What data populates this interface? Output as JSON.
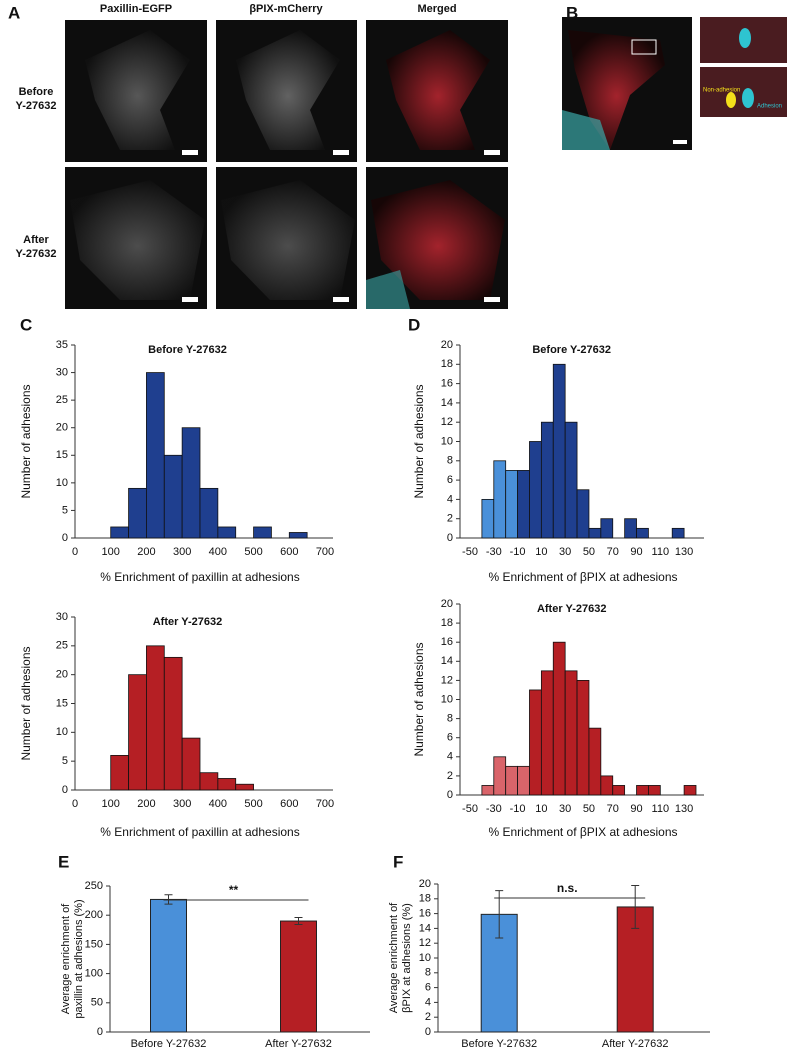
{
  "figure": {
    "panel_letters": [
      "A",
      "B",
      "C",
      "D",
      "E",
      "F"
    ],
    "column_headers": [
      "Paxillin-EGFP",
      "βPIX-mCherry",
      "Merged"
    ],
    "row_labels": [
      [
        "Before",
        "Y-27632"
      ],
      [
        "After",
        "Y-27632"
      ]
    ],
    "inset_labels": [
      "Non-adhesion",
      "Adhesion"
    ]
  },
  "chart_data": [
    {
      "type": "histogram",
      "title": "Before Y-27632",
      "xlabel": "% Enrichment of paxillin at adhesions",
      "ylabel": "Number of adhesions",
      "bins": [
        0,
        50,
        100,
        150,
        200,
        250,
        300,
        350,
        400,
        450,
        500,
        550,
        600,
        650,
        700
      ],
      "values": [
        0,
        0,
        2,
        9,
        30,
        15,
        20,
        9,
        2,
        0,
        2,
        0,
        1,
        0
      ],
      "color": "#1f3f8f",
      "xlim": [
        0,
        700
      ],
      "xticks": [
        0,
        100,
        200,
        300,
        400,
        500,
        600,
        700
      ],
      "ylim": [
        0,
        35
      ],
      "yticks": [
        0,
        5,
        10,
        15,
        20,
        25,
        30,
        35
      ]
    },
    {
      "type": "histogram",
      "title": "After Y-27632",
      "xlabel": "% Enrichment of paxillin at adhesions",
      "ylabel": "Number of adhesions",
      "bins": [
        0,
        50,
        100,
        150,
        200,
        250,
        300,
        350,
        400,
        450,
        500,
        550,
        600,
        650,
        700
      ],
      "values": [
        0,
        0,
        6,
        20,
        25,
        23,
        9,
        3,
        2,
        1,
        0,
        0,
        0,
        0
      ],
      "color": "#b51f24",
      "xlim": [
        0,
        700
      ],
      "xticks": [
        0,
        100,
        200,
        300,
        400,
        500,
        600,
        700
      ],
      "ylim": [
        0,
        30
      ],
      "yticks": [
        0,
        5,
        10,
        15,
        20,
        25,
        30
      ]
    },
    {
      "type": "histogram",
      "title": "Before Y-27632",
      "xlabel": "% Enrichment of βPIX at adhesions",
      "ylabel": "Number of adhesions",
      "bins": [
        -40,
        -30,
        -20,
        -10,
        0,
        10,
        20,
        30,
        40,
        50,
        60,
        70,
        80,
        90,
        100,
        110,
        120,
        130,
        140
      ],
      "values": [
        4,
        8,
        7,
        7,
        10,
        12,
        18,
        12,
        5,
        1,
        2,
        0,
        2,
        1,
        0,
        0,
        1,
        0
      ],
      "colors": [
        "#4a90d9",
        "#4a90d9",
        "#4a90d9",
        "#1f3f8f",
        "#1f3f8f",
        "#1f3f8f",
        "#1f3f8f",
        "#1f3f8f",
        "#1f3f8f",
        "#1f3f8f",
        "#1f3f8f",
        "#1f3f8f",
        "#1f3f8f",
        "#1f3f8f",
        "#1f3f8f",
        "#1f3f8f",
        "#1f3f8f",
        "#1f3f8f"
      ],
      "xlim": [
        -50,
        140
      ],
      "xticks": [
        -50,
        -30,
        -10,
        10,
        30,
        50,
        70,
        90,
        110,
        130
      ],
      "ylim": [
        0,
        20
      ],
      "yticks": [
        0,
        2,
        4,
        6,
        8,
        10,
        12,
        14,
        16,
        18,
        20
      ]
    },
    {
      "type": "histogram",
      "title": "After Y-27632",
      "xlabel": "% Enrichment of βPIX at adhesions",
      "ylabel": "Number of adhesions",
      "bins": [
        -40,
        -30,
        -20,
        -10,
        0,
        10,
        20,
        30,
        40,
        50,
        60,
        70,
        80,
        90,
        100,
        110,
        120,
        130,
        140
      ],
      "values": [
        1,
        4,
        3,
        3,
        11,
        13,
        16,
        13,
        12,
        7,
        2,
        1,
        0,
        1,
        1,
        0,
        0,
        1
      ],
      "colors": [
        "#d9646a",
        "#d9646a",
        "#d9646a",
        "#d9646a",
        "#b51f24",
        "#b51f24",
        "#b51f24",
        "#b51f24",
        "#b51f24",
        "#b51f24",
        "#b51f24",
        "#b51f24",
        "#b51f24",
        "#b51f24",
        "#b51f24",
        "#b51f24",
        "#b51f24",
        "#b51f24"
      ],
      "xlim": [
        -50,
        140
      ],
      "xticks": [
        -50,
        -30,
        -10,
        10,
        30,
        50,
        70,
        90,
        110,
        130
      ],
      "ylim": [
        0,
        20
      ],
      "yticks": [
        0,
        2,
        4,
        6,
        8,
        10,
        12,
        14,
        16,
        18,
        20
      ]
    },
    {
      "type": "bar",
      "ylabel": [
        "Average enrichment of",
        "paxillin at adhesions (%)"
      ],
      "categories": [
        "Before Y-27632",
        "After Y-27632"
      ],
      "values": [
        227,
        190
      ],
      "errors": [
        8,
        6
      ],
      "colors": [
        "#4a90d9",
        "#b51f24"
      ],
      "annotation": "**",
      "ylim": [
        0,
        250
      ],
      "yticks": [
        0,
        50,
        100,
        150,
        200,
        250
      ]
    },
    {
      "type": "bar",
      "ylabel": [
        "Average enrichment of",
        "βPIX at adhesions (%)"
      ],
      "categories": [
        "Before Y-27632",
        "After Y-27632"
      ],
      "values": [
        15.9,
        16.9
      ],
      "errors": [
        3.2,
        2.9
      ],
      "colors": [
        "#4a90d9",
        "#b51f24"
      ],
      "annotation": "n.s.",
      "ylim": [
        0,
        20
      ],
      "yticks": [
        0,
        2,
        4,
        6,
        8,
        10,
        12,
        14,
        16,
        18,
        20
      ]
    }
  ]
}
